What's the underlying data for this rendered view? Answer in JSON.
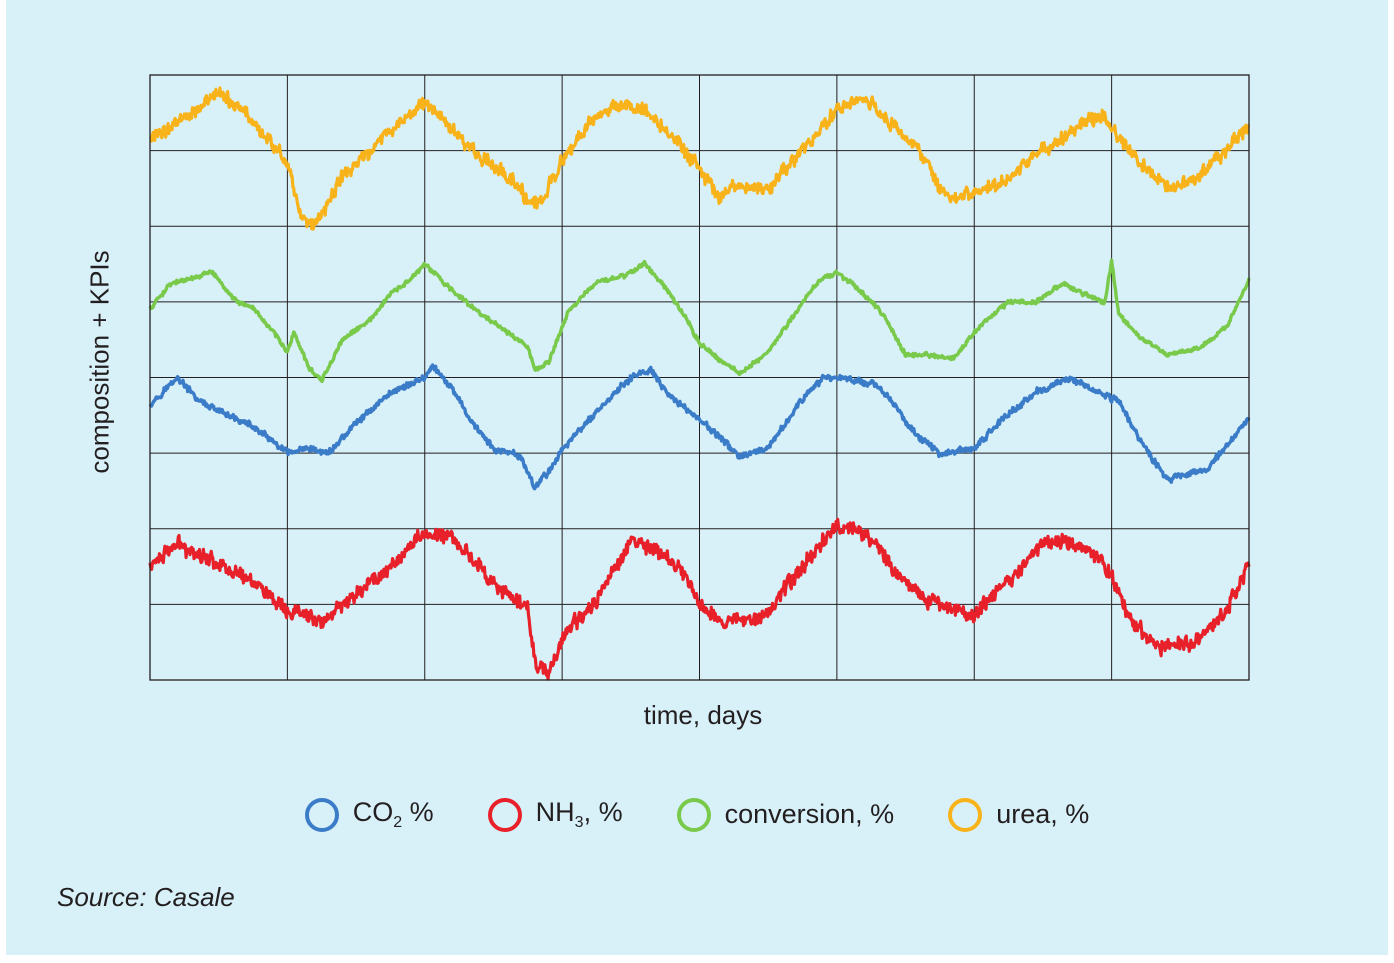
{
  "chart_data": {
    "type": "line",
    "title": "",
    "xlabel": "time, days",
    "ylabel": "composition + KPIs",
    "grid": true,
    "x_ticks_labeled": false,
    "y_ticks_labeled": false,
    "xlim": [
      0,
      8
    ],
    "ylim": [
      0,
      8
    ],
    "legend_position": "bottom",
    "series": [
      {
        "name_main": "CO",
        "name_sub": "2",
        "name_suffix": " %",
        "color": "#3b7cc9",
        "noise": 0.06,
        "x": [
          0,
          0.2,
          0.35,
          0.5,
          0.75,
          1.0,
          1.15,
          1.3,
          1.5,
          1.75,
          2.0,
          2.05,
          2.2,
          2.35,
          2.5,
          2.7,
          2.8,
          2.9,
          3.0,
          3.2,
          3.5,
          3.65,
          3.75,
          4.0,
          4.3,
          4.5,
          4.7,
          4.9,
          5.05,
          5.3,
          5.45,
          5.6,
          5.75,
          6.0,
          6.2,
          6.45,
          6.7,
          6.9,
          7.05,
          7.2,
          7.4,
          7.7,
          8.0
        ],
        "y": [
          3.65,
          4.0,
          3.7,
          3.55,
          3.35,
          3.0,
          3.05,
          3.0,
          3.4,
          3.8,
          4.0,
          4.15,
          3.85,
          3.4,
          3.05,
          2.95,
          2.55,
          2.75,
          3.05,
          3.45,
          4.0,
          4.1,
          3.8,
          3.45,
          2.95,
          3.05,
          3.6,
          4.0,
          4.0,
          3.9,
          3.55,
          3.2,
          3.0,
          3.05,
          3.45,
          3.8,
          4.0,
          3.8,
          3.7,
          3.2,
          2.65,
          2.8,
          3.45
        ]
      },
      {
        "name_main": "NH",
        "name_sub": "3",
        "name_suffix": ", %",
        "color": "#e8202a",
        "noise": 0.14,
        "x": [
          0,
          0.2,
          0.5,
          0.8,
          1.0,
          1.1,
          1.25,
          1.5,
          1.75,
          2.0,
          2.2,
          2.4,
          2.6,
          2.75,
          2.8,
          2.9,
          3.0,
          3.25,
          3.5,
          3.7,
          3.9,
          4.0,
          4.2,
          4.5,
          4.75,
          5.0,
          5.2,
          5.45,
          5.65,
          5.75,
          6.0,
          6.25,
          6.5,
          6.75,
          6.85,
          7.0,
          7.15,
          7.35,
          7.6,
          7.85,
          8.0
        ],
        "y": [
          1.5,
          1.8,
          1.55,
          1.25,
          0.85,
          0.9,
          0.75,
          1.15,
          1.5,
          1.95,
          1.9,
          1.5,
          1.1,
          0.95,
          0.25,
          0.1,
          0.55,
          1.05,
          1.85,
          1.7,
          1.4,
          1.0,
          0.75,
          0.9,
          1.5,
          2.05,
          1.95,
          1.4,
          1.05,
          1.0,
          0.85,
          1.3,
          1.85,
          1.8,
          1.7,
          1.4,
          0.75,
          0.45,
          0.5,
          0.95,
          1.55
        ]
      },
      {
        "name_main": "conversion, %",
        "name_sub": "",
        "name_suffix": "",
        "color": "#79c94b",
        "noise": 0.04,
        "x": [
          0,
          0.15,
          0.3,
          0.45,
          0.6,
          0.75,
          0.9,
          1.0,
          1.05,
          1.15,
          1.25,
          1.4,
          1.6,
          1.75,
          1.9,
          2.0,
          2.2,
          2.4,
          2.6,
          2.75,
          2.8,
          2.9,
          3.05,
          3.25,
          3.45,
          3.6,
          3.75,
          3.9,
          4.0,
          4.1,
          4.3,
          4.5,
          4.7,
          4.85,
          5.0,
          5.2,
          5.35,
          5.5,
          5.65,
          5.85,
          6.05,
          6.25,
          6.45,
          6.65,
          6.8,
          6.95,
          7.0,
          7.05,
          7.2,
          7.4,
          7.65,
          7.85,
          8.0
        ],
        "y": [
          4.9,
          5.25,
          5.3,
          5.4,
          5.05,
          4.9,
          4.6,
          4.35,
          4.6,
          4.15,
          3.95,
          4.5,
          4.75,
          5.1,
          5.3,
          5.5,
          5.15,
          4.85,
          4.6,
          4.4,
          4.1,
          4.2,
          4.9,
          5.25,
          5.35,
          5.5,
          5.2,
          4.8,
          4.45,
          4.3,
          4.05,
          4.35,
          4.85,
          5.25,
          5.4,
          5.1,
          4.8,
          4.3,
          4.3,
          4.25,
          4.7,
          5.0,
          5.0,
          5.25,
          5.1,
          5.0,
          5.55,
          4.85,
          4.55,
          4.3,
          4.4,
          4.7,
          5.3
        ]
      },
      {
        "name_main": "urea, %",
        "name_sub": "",
        "name_suffix": "",
        "color": "#f9b31a",
        "noise": 0.13,
        "x": [
          0,
          0.25,
          0.5,
          0.7,
          0.9,
          1.0,
          1.1,
          1.2,
          1.4,
          1.6,
          1.8,
          2.0,
          2.2,
          2.4,
          2.6,
          2.75,
          2.85,
          3.0,
          3.2,
          3.4,
          3.6,
          3.8,
          4.0,
          4.15,
          4.25,
          4.5,
          4.75,
          5.0,
          5.2,
          5.4,
          5.6,
          5.75,
          5.85,
          6.0,
          6.2,
          6.5,
          6.75,
          6.95,
          7.0,
          7.2,
          7.4,
          7.6,
          7.8,
          8.0
        ],
        "y": [
          7.15,
          7.45,
          7.75,
          7.5,
          7.05,
          6.85,
          6.1,
          6.0,
          6.65,
          7.0,
          7.35,
          7.65,
          7.3,
          6.9,
          6.7,
          6.35,
          6.3,
          6.85,
          7.35,
          7.6,
          7.55,
          7.2,
          6.75,
          6.35,
          6.5,
          6.5,
          7.0,
          7.55,
          7.7,
          7.35,
          7.0,
          6.5,
          6.35,
          6.45,
          6.55,
          7.0,
          7.3,
          7.5,
          7.3,
          6.85,
          6.5,
          6.6,
          6.95,
          7.35
        ]
      }
    ]
  },
  "source": "Source: Casale"
}
